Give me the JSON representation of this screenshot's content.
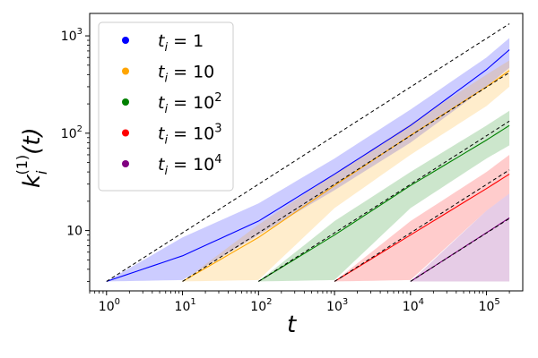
{
  "chart_data": {
    "type": "line",
    "scale": {
      "x": "log",
      "y": "log"
    },
    "xlabel": {
      "base": "t"
    },
    "ylabel": {
      "base": "k",
      "subscript": "i",
      "superscript": "(1)",
      "argument": "(t)"
    },
    "xlim": [
      0.6,
      300000
    ],
    "ylim": [
      2.4,
      1700
    ],
    "x_ticks": [
      {
        "value": 1,
        "base": "10",
        "exp": "0"
      },
      {
        "value": 10,
        "base": "10",
        "exp": "1"
      },
      {
        "value": 100,
        "base": "10",
        "exp": "2"
      },
      {
        "value": 1000,
        "base": "10",
        "exp": "3"
      },
      {
        "value": 10000,
        "base": "10",
        "exp": "4"
      },
      {
        "value": 100000,
        "base": "10",
        "exp": "5"
      }
    ],
    "y_ticks": [
      {
        "value": 10,
        "base": "10",
        "exp": ""
      },
      {
        "value": 100,
        "base": "10",
        "exp": "2"
      },
      {
        "value": 1000,
        "base": "10",
        "exp": "3"
      }
    ],
    "legend_position": "top-left",
    "reference_line_color": "#000000",
    "series": [
      {
        "name": "t_i = 1",
        "legend": {
          "prefix": "t",
          "sub": "i",
          "eq": " = 1",
          "sup": ""
        },
        "color": "#0000ff",
        "x": [
          1,
          10,
          100,
          1000,
          10000,
          100000,
          200000
        ],
        "mean": [
          3,
          5.5,
          12.5,
          38,
          120,
          450,
          720
        ],
        "upper": [
          3,
          8.5,
          19,
          55,
          175,
          600,
          950
        ],
        "lower": [
          3,
          3.1,
          9.0,
          26,
          80,
          300,
          470
        ],
        "reference": [
          3,
          9.4,
          29.8,
          94,
          297,
          940,
          1330
        ]
      },
      {
        "name": "t_i = 10",
        "legend": {
          "prefix": "t",
          "sub": "i",
          "eq": " = 10",
          "sup": ""
        },
        "color": "#ffa500",
        "x": [
          10,
          100,
          1000,
          10000,
          100000,
          200000
        ],
        "mean": [
          3,
          8.5,
          29,
          95,
          300,
          440
        ],
        "upper": [
          3,
          11.5,
          38,
          125,
          400,
          560
        ],
        "lower": [
          3,
          3.1,
          17,
          60,
          190,
          300
        ],
        "reference": [
          3,
          9.4,
          29.8,
          94,
          297,
          420
        ]
      },
      {
        "name": "t_i = 10^2",
        "legend": {
          "prefix": "t",
          "sub": "i",
          "eq": " = 10",
          "sup": "2"
        },
        "color": "#008000",
        "x": [
          100,
          1000,
          10000,
          100000,
          200000
        ],
        "mean": [
          3,
          9,
          29,
          85,
          120
        ],
        "upper": [
          3,
          12.5,
          40,
          120,
          170
        ],
        "lower": [
          3,
          3.1,
          17,
          55,
          75
        ],
        "reference": [
          3,
          9.4,
          29.8,
          94,
          133
        ]
      },
      {
        "name": "t_i = 10^3",
        "legend": {
          "prefix": "t",
          "sub": "i",
          "eq": " = 10",
          "sup": "3"
        },
        "color": "#ff0000",
        "x": [
          1000,
          10000,
          100000,
          200000
        ],
        "mean": [
          3,
          9,
          27,
          38
        ],
        "upper": [
          3,
          12.5,
          40,
          60
        ],
        "lower": [
          3,
          3.1,
          16,
          24
        ],
        "reference": [
          3,
          9.4,
          29.8,
          42
        ]
      },
      {
        "name": "t_i = 10^4",
        "legend": {
          "prefix": "t",
          "sub": "i",
          "eq": " = 10",
          "sup": "4"
        },
        "color": "#800080",
        "x": [
          10000,
          100000,
          200000
        ],
        "mean": [
          3,
          9.5,
          13.5
        ],
        "upper": [
          3,
          16,
          24
        ],
        "lower": [
          3,
          3,
          3
        ],
        "reference": [
          3,
          9.4,
          13.3
        ]
      }
    ]
  }
}
